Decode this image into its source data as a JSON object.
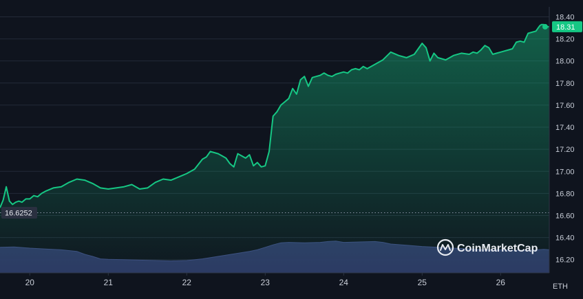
{
  "chart_data": {
    "type": "area",
    "y_ticks": [
      "18.40",
      "18.20",
      "18.00",
      "17.80",
      "17.60",
      "17.40",
      "17.20",
      "17.00",
      "16.80",
      "16.60",
      "16.40",
      "16.20"
    ],
    "ylim": [
      16.08,
      18.49
    ],
    "x_ticks": [
      "20",
      "21",
      "22",
      "23",
      "24",
      "25",
      "26"
    ],
    "x_tick_days": [
      20,
      21,
      22,
      23,
      24,
      25,
      26
    ],
    "xlim": [
      19.62,
      26.62
    ],
    "unit": "ETH",
    "current_price": "18.31",
    "current_value": 18.31,
    "start_price": "16.6252",
    "start_value": 16.6252,
    "watermark": "CoinMarketCap",
    "colors": {
      "line": "#16c784",
      "badge": "#16c784",
      "volume": "#2f3a67",
      "grid": "#232a38",
      "background": "#0f141e"
    },
    "series": [
      {
        "x": [
          19.62,
          19.66,
          19.7,
          19.74,
          19.78,
          19.82,
          19.86,
          19.9,
          19.95,
          20.0,
          20.05,
          20.1,
          20.15,
          20.2,
          20.3,
          20.4,
          20.5,
          20.6,
          20.7,
          20.8,
          20.9,
          21.0,
          21.1,
          21.2,
          21.3,
          21.4,
          21.5,
          21.6,
          21.7,
          21.8,
          21.9,
          22.0,
          22.1,
          22.2,
          22.25,
          22.3,
          22.4,
          22.45,
          22.5,
          22.55,
          22.6,
          22.65,
          22.7,
          22.75,
          22.8,
          22.85,
          22.9,
          22.95,
          23.0,
          23.05,
          23.1,
          23.15,
          23.2,
          23.25,
          23.3,
          23.35,
          23.4,
          23.45,
          23.5,
          23.55,
          23.6,
          23.65,
          23.7,
          23.75,
          23.8,
          23.85,
          23.9,
          23.95,
          24.0,
          24.05,
          24.1,
          24.15,
          24.2,
          24.25,
          24.3,
          24.4,
          24.5,
          24.6,
          24.7,
          24.8,
          24.9,
          25.0,
          25.05,
          25.1,
          25.15,
          25.2,
          25.3,
          25.4,
          25.5,
          25.6,
          25.65,
          25.7,
          25.75,
          25.8,
          25.85,
          25.9,
          25.95,
          26.0,
          26.05,
          26.1,
          26.15,
          26.2,
          26.25,
          26.3,
          26.35,
          26.4,
          26.45,
          26.48,
          26.5,
          26.52,
          26.55,
          26.58,
          26.6,
          26.62
        ],
        "values": [
          16.67,
          16.74,
          16.86,
          16.73,
          16.7,
          16.72,
          16.73,
          16.72,
          16.75,
          16.75,
          16.78,
          16.77,
          16.8,
          16.82,
          16.85,
          16.86,
          16.9,
          16.93,
          16.92,
          16.89,
          16.85,
          16.84,
          16.85,
          16.86,
          16.88,
          16.84,
          16.85,
          16.9,
          16.93,
          16.92,
          16.95,
          16.98,
          17.02,
          17.11,
          17.13,
          17.18,
          17.16,
          17.14,
          17.12,
          17.07,
          17.04,
          17.16,
          17.14,
          17.12,
          17.15,
          17.05,
          17.08,
          17.04,
          17.05,
          17.18,
          17.5,
          17.54,
          17.6,
          17.63,
          17.66,
          17.75,
          17.7,
          17.83,
          17.86,
          17.77,
          17.85,
          17.86,
          17.87,
          17.89,
          17.87,
          17.86,
          17.88,
          17.89,
          17.9,
          17.89,
          17.92,
          17.93,
          17.92,
          17.95,
          17.93,
          17.97,
          18.01,
          18.08,
          18.05,
          18.03,
          18.06,
          18.16,
          18.12,
          18.0,
          18.07,
          18.03,
          18.01,
          18.05,
          18.07,
          18.06,
          18.08,
          18.07,
          18.1,
          18.14,
          18.12,
          18.06,
          18.07,
          18.08,
          18.09,
          18.1,
          18.11,
          18.17,
          18.18,
          18.17,
          18.25,
          18.26,
          18.27,
          18.3,
          18.32,
          18.33,
          18.33,
          18.31,
          18.31,
          18.31
        ]
      },
      {
        "x": [
          19.62,
          19.8,
          20.0,
          20.2,
          20.4,
          20.6,
          20.7,
          20.8,
          20.9,
          21.0,
          21.2,
          21.4,
          21.6,
          21.8,
          22.0,
          22.2,
          22.4,
          22.6,
          22.8,
          22.9,
          23.0,
          23.1,
          23.2,
          23.3,
          23.5,
          23.7,
          23.8,
          23.9,
          24.0,
          24.2,
          24.4,
          24.5,
          24.6,
          24.8,
          25.0,
          25.2,
          25.4,
          25.6,
          25.8,
          26.0,
          26.2,
          26.4,
          26.55,
          26.62
        ],
        "values": [
          0.62,
          0.63,
          0.6,
          0.58,
          0.56,
          0.52,
          0.45,
          0.4,
          0.34,
          0.33,
          0.32,
          0.31,
          0.3,
          0.29,
          0.3,
          0.34,
          0.4,
          0.46,
          0.52,
          0.56,
          0.62,
          0.68,
          0.73,
          0.74,
          0.73,
          0.74,
          0.76,
          0.77,
          0.74,
          0.75,
          0.76,
          0.74,
          0.7,
          0.67,
          0.64,
          0.62,
          0.6,
          0.58,
          0.56,
          0.56,
          0.55,
          0.55,
          0.57,
          0.56
        ]
      }
    ]
  }
}
